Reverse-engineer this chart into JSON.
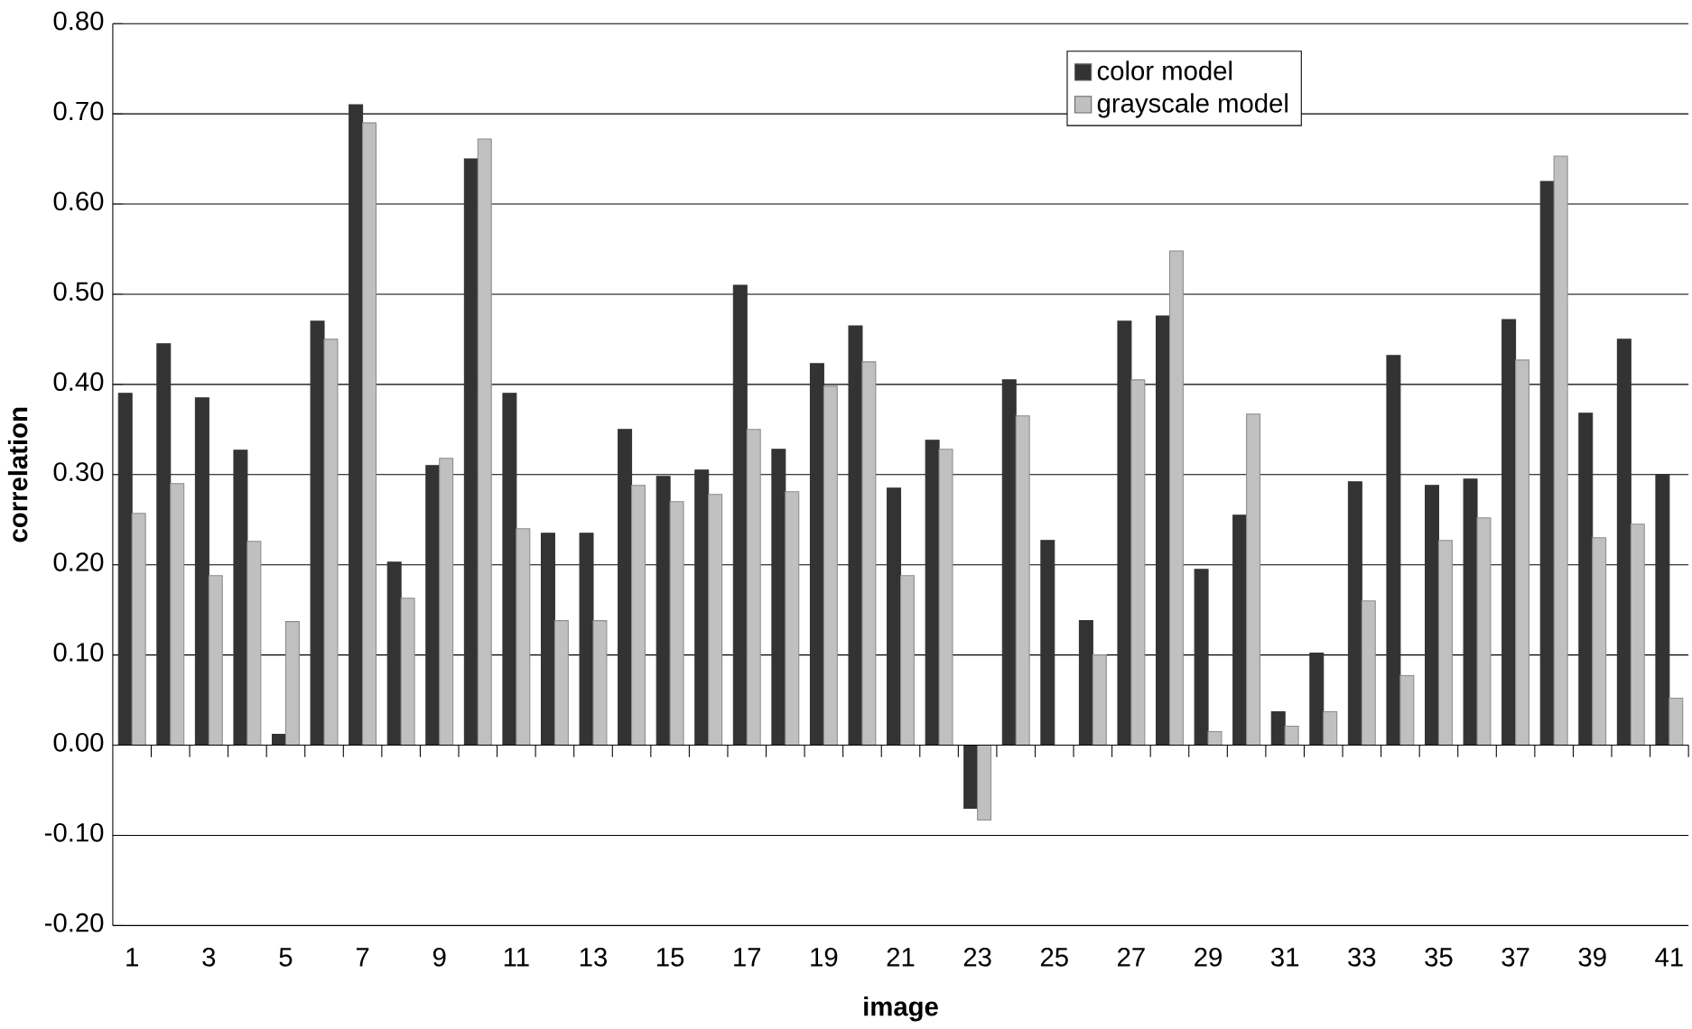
{
  "chart_data": {
    "type": "bar",
    "xlabel": "image",
    "ylabel": "correlation",
    "categories": [
      "1",
      null,
      "3",
      null,
      "5",
      null,
      "7",
      null,
      "9",
      null,
      "11",
      null,
      "13",
      null,
      "15",
      null,
      "17",
      null,
      "19",
      null,
      "21",
      null,
      "23",
      null,
      "25",
      null,
      "27",
      null,
      "29",
      null,
      "31",
      null,
      "33",
      null,
      "35",
      null,
      "37",
      null,
      "39",
      null,
      "41"
    ],
    "series": [
      {
        "name": "color model",
        "color": "#333333",
        "values": [
          0.39,
          0.445,
          0.385,
          0.327,
          0.012,
          0.47,
          0.71,
          0.203,
          0.31,
          0.65,
          0.39,
          0.235,
          0.235,
          0.35,
          0.298,
          0.305,
          0.51,
          0.328,
          0.423,
          0.465,
          0.285,
          0.338,
          -0.07,
          0.405,
          0.227,
          0.138,
          0.47,
          0.476,
          0.195,
          0.255,
          0.037,
          0.102,
          0.292,
          0.432,
          0.288,
          0.295,
          0.472,
          0.625,
          0.368,
          0.45,
          0.3
        ]
      },
      {
        "name": "grayscale model",
        "color": "#c0c0c0",
        "values": [
          0.257,
          0.29,
          0.188,
          0.226,
          0.137,
          0.45,
          0.69,
          0.163,
          0.318,
          0.672,
          0.24,
          0.138,
          0.138,
          0.288,
          0.27,
          0.278,
          0.35,
          0.281,
          0.398,
          0.425,
          0.188,
          0.328,
          -0.083,
          0.365,
          null,
          0.1,
          0.405,
          0.548,
          0.015,
          0.367,
          0.021,
          0.037,
          0.16,
          0.077,
          0.227,
          0.252,
          0.427,
          0.653,
          0.23,
          0.245,
          0.052
        ]
      }
    ],
    "ylim": [
      -0.2,
      0.8
    ],
    "yticks": [
      {
        "value": -0.2,
        "label": "-0.20"
      },
      {
        "value": -0.1,
        "label": "-0.10"
      },
      {
        "value": 0,
        "label": "0.00"
      },
      {
        "value": 0.1,
        "label": "0.10"
      },
      {
        "value": 0.2,
        "label": "0.20"
      },
      {
        "value": 0.3,
        "label": "0.30"
      },
      {
        "value": 0.4,
        "label": "0.40"
      },
      {
        "value": 0.5,
        "label": "0.50"
      },
      {
        "value": 0.6,
        "label": "0.60"
      },
      {
        "value": 0.7,
        "label": "0.70"
      },
      {
        "value": 0.8,
        "label": "0.80"
      }
    ],
    "grid": "y",
    "legend": "top"
  }
}
